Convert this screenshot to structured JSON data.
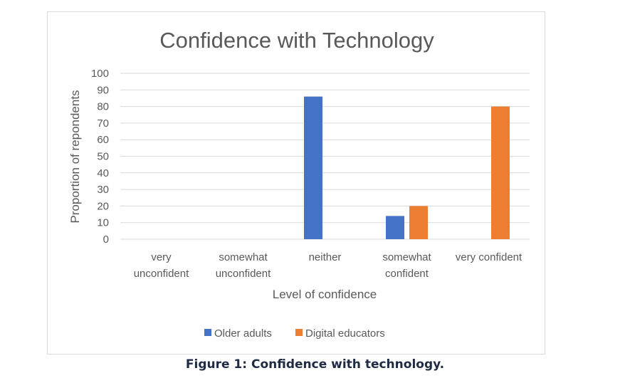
{
  "chart_data": {
    "type": "bar",
    "title": "Confidence with Technology",
    "xlabel": "Level of confidence",
    "ylabel": "Proportion of repondents",
    "categories": [
      [
        "very",
        "unconfident"
      ],
      [
        "somewhat",
        "unconfident"
      ],
      [
        "neither"
      ],
      [
        "somewhat",
        "confident"
      ],
      [
        "very confident"
      ]
    ],
    "series": [
      {
        "name": "Older adults",
        "color": "#4472c4",
        "values": [
          0,
          0,
          86,
          14,
          0
        ]
      },
      {
        "name": "Digital educators",
        "color": "#ed7d31",
        "values": [
          0,
          0,
          0,
          20,
          80
        ]
      }
    ],
    "ylim": [
      0,
      100
    ],
    "yticks": [
      0,
      10,
      20,
      30,
      40,
      50,
      60,
      70,
      80,
      90,
      100
    ],
    "grid": true,
    "legend_position": "bottom"
  },
  "caption": "Figure 1: Confidence with technology."
}
